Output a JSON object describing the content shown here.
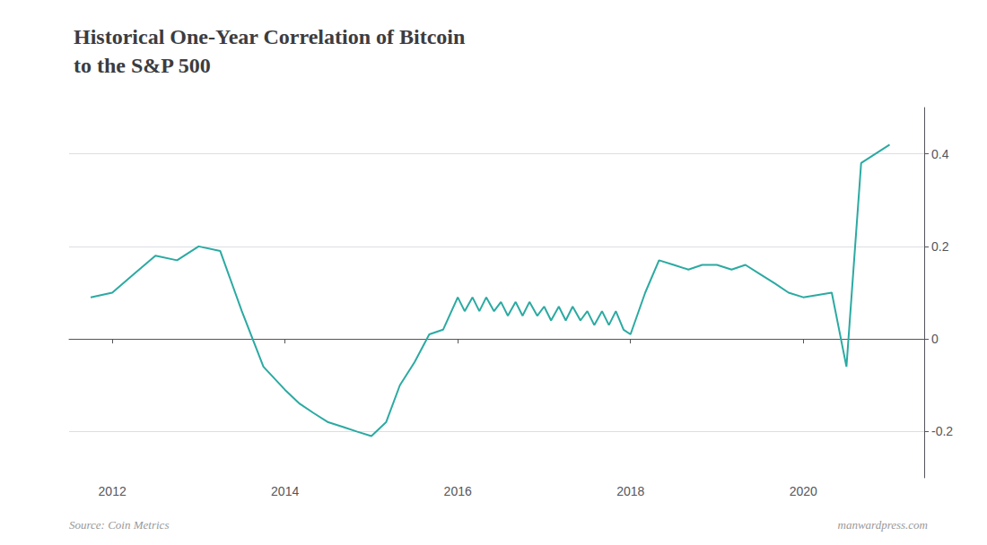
{
  "chart_data": {
    "type": "line",
    "title": "Historical One-Year Correlation of Bitcoin\nto the S&P 500",
    "annotations": [
      "Source: Coin Metrics",
      "manwardpress.com"
    ],
    "x": [
      2011.75,
      2012.0,
      2012.25,
      2012.5,
      2012.75,
      2013.0,
      2013.25,
      2013.5,
      2013.75,
      2014.0,
      2014.17,
      2014.33,
      2014.5,
      2014.67,
      2014.83,
      2015.0,
      2015.17,
      2015.33,
      2015.5,
      2015.67,
      2015.83,
      2016.0,
      2016.08,
      2016.17,
      2016.25,
      2016.33,
      2016.42,
      2016.5,
      2016.58,
      2016.67,
      2016.75,
      2016.83,
      2016.92,
      2017.0,
      2017.08,
      2017.17,
      2017.25,
      2017.33,
      2017.42,
      2017.5,
      2017.58,
      2017.67,
      2017.75,
      2017.83,
      2017.92,
      2018.0,
      2018.17,
      2018.33,
      2018.5,
      2018.67,
      2018.83,
      2019.0,
      2019.17,
      2019.33,
      2019.5,
      2019.67,
      2019.83,
      2020.0,
      2020.33,
      2020.5,
      2020.67,
      2021.0
    ],
    "values": [
      0.09,
      0.1,
      0.14,
      0.18,
      0.17,
      0.2,
      0.19,
      0.06,
      -0.06,
      -0.11,
      -0.14,
      -0.16,
      -0.18,
      -0.19,
      -0.2,
      -0.21,
      -0.18,
      -0.1,
      -0.05,
      0.01,
      0.02,
      0.09,
      0.06,
      0.09,
      0.06,
      0.09,
      0.06,
      0.08,
      0.05,
      0.08,
      0.05,
      0.08,
      0.05,
      0.07,
      0.04,
      0.07,
      0.04,
      0.07,
      0.04,
      0.06,
      0.03,
      0.06,
      0.03,
      0.06,
      0.02,
      0.01,
      0.1,
      0.17,
      0.16,
      0.15,
      0.16,
      0.16,
      0.15,
      0.16,
      0.14,
      0.12,
      0.1,
      0.09,
      0.1,
      -0.06,
      0.38,
      0.42
    ],
    "color": "#2baaa2",
    "xlim": [
      2011.5,
      2021.4
    ],
    "xticks": [
      2012,
      2014,
      2016,
      2018,
      2020
    ],
    "ylim": [
      -0.3,
      0.5
    ],
    "yticks": [
      -0.2,
      0.0,
      0.2,
      0.4
    ],
    "grid": true
  }
}
